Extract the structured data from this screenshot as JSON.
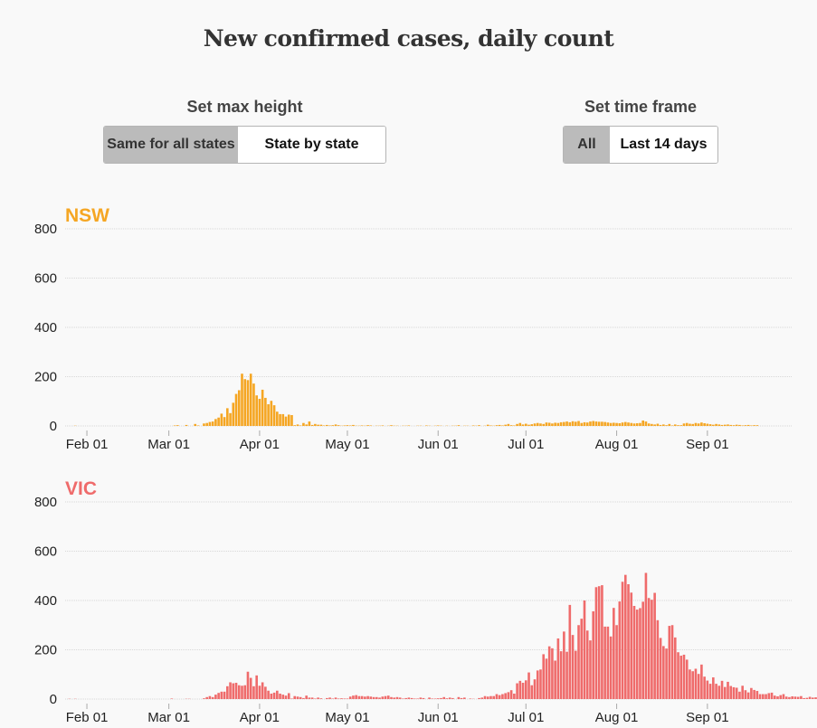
{
  "title": "New confirmed cases, daily count",
  "controls": {
    "max_height": {
      "label": "Set max height",
      "options": [
        "Same for all states",
        "State by state"
      ],
      "selected": "Same for all states"
    },
    "time_frame": {
      "label": "Set time frame",
      "options": [
        "All",
        "Last 14 days"
      ],
      "selected": "All"
    }
  },
  "chart_data": [
    {
      "type": "bar",
      "title": "NSW",
      "color": "#f5a623",
      "x_start": "Jan 25",
      "x_ticks": [
        "Feb 01",
        "Mar 01",
        "Apr 01",
        "May 01",
        "Jun 01",
        "Jul 01",
        "Aug 01",
        "Sep 01"
      ],
      "x_tick_day_index": [
        7,
        35,
        66,
        96,
        127,
        157,
        188,
        219
      ],
      "y_ticks": [
        0,
        200,
        400,
        600,
        800
      ],
      "ylim": [
        0,
        800
      ],
      "grid": true,
      "values": [
        0,
        0,
        0,
        1,
        0,
        0,
        0,
        0,
        0,
        0,
        0,
        0,
        0,
        0,
        0,
        0,
        0,
        0,
        0,
        0,
        0,
        0,
        0,
        0,
        0,
        0,
        0,
        0,
        0,
        0,
        0,
        0,
        0,
        0,
        0,
        0,
        0,
        2,
        3,
        0,
        0,
        4,
        0,
        0,
        8,
        2,
        0,
        10,
        12,
        16,
        18,
        28,
        34,
        50,
        36,
        72,
        52,
        94,
        130,
        145,
        212,
        190,
        186,
        212,
        172,
        124,
        110,
        147,
        114,
        88,
        102,
        84,
        58,
        48,
        48,
        38,
        46,
        44,
        3,
        6,
        2,
        12,
        6,
        18,
        4,
        8,
        5,
        5,
        2,
        4,
        2,
        3,
        6,
        3,
        1,
        2,
        3,
        2,
        4,
        1,
        1,
        2,
        1,
        3,
        2,
        0,
        1,
        1,
        2,
        0,
        1,
        3,
        1,
        1,
        0,
        1,
        1,
        2,
        0,
        0,
        1,
        1,
        0,
        2,
        1,
        0,
        1,
        2,
        1,
        0,
        1,
        0,
        1,
        1,
        3,
        0,
        1,
        1,
        0,
        2,
        1,
        3,
        0,
        1,
        5,
        2,
        1,
        3,
        4,
        2,
        5,
        8,
        3,
        2,
        8,
        12,
        6,
        9,
        5,
        7,
        10,
        12,
        10,
        8,
        14,
        13,
        10,
        13,
        12,
        15,
        16,
        18,
        15,
        19,
        17,
        20,
        12,
        15,
        14,
        18,
        20,
        18,
        17,
        17,
        16,
        14,
        12,
        13,
        12,
        11,
        14,
        16,
        14,
        12,
        10,
        11,
        12,
        22,
        18,
        10,
        8,
        6,
        9,
        4,
        6,
        3,
        8,
        2,
        6,
        3,
        3,
        10,
        12,
        9,
        8,
        12,
        10,
        14,
        11,
        9,
        7,
        5,
        8,
        6,
        4,
        5,
        6,
        4,
        3,
        5,
        4,
        2,
        3,
        4,
        2,
        3,
        3
      ]
    },
    {
      "type": "bar",
      "title": "VIC",
      "color": "#ef6b6b",
      "x_start": "Jan 25",
      "x_ticks": [
        "Feb 01",
        "Mar 01",
        "Apr 01",
        "May 01",
        "Jun 01",
        "Jul 01",
        "Aug 01",
        "Sep 01"
      ],
      "x_tick_day_index": [
        7,
        35,
        66,
        96,
        127,
        157,
        188,
        219
      ],
      "y_ticks": [
        0,
        200,
        400,
        600,
        800
      ],
      "ylim": [
        0,
        800
      ],
      "grid": true,
      "values": [
        0,
        1,
        0,
        1,
        0,
        0,
        0,
        0,
        0,
        0,
        0,
        0,
        0,
        0,
        0,
        0,
        0,
        0,
        0,
        0,
        0,
        0,
        0,
        0,
        0,
        0,
        0,
        0,
        0,
        0,
        0,
        0,
        0,
        0,
        0,
        0,
        2,
        0,
        0,
        0,
        0,
        1,
        1,
        0,
        0,
        0,
        0,
        3,
        8,
        12,
        8,
        18,
        25,
        30,
        30,
        52,
        68,
        64,
        66,
        56,
        54,
        56,
        111,
        86,
        52,
        96,
        54,
        68,
        50,
        34,
        22,
        26,
        34,
        22,
        18,
        14,
        24,
        2,
        12,
        10,
        8,
        4,
        14,
        6,
        6,
        2,
        6,
        3,
        0,
        4,
        6,
        2,
        6,
        2,
        3,
        2,
        2,
        10,
        14,
        16,
        12,
        12,
        10,
        12,
        10,
        8,
        8,
        6,
        10,
        12,
        14,
        8,
        6,
        8,
        6,
        2,
        4,
        6,
        4,
        2,
        2,
        6,
        4,
        0,
        6,
        2,
        2,
        3,
        4,
        8,
        3,
        6,
        4,
        0,
        8,
        4,
        6,
        0,
        2,
        1,
        0,
        4,
        6,
        12,
        10,
        12,
        12,
        20,
        16,
        20,
        24,
        28,
        36,
        22,
        64,
        74,
        66,
        76,
        108,
        56,
        80,
        116,
        120,
        182,
        164,
        214,
        206,
        156,
        246,
        194,
        274,
        192,
        382,
        260,
        196,
        300,
        326,
        400,
        278,
        238,
        356,
        454,
        458,
        462,
        294,
        294,
        254,
        370,
        300,
        396,
        476,
        504,
        466,
        432,
        378,
        363,
        369,
        395,
        512,
        410,
        403,
        431,
        320,
        248,
        215,
        205,
        297,
        300,
        250,
        190,
        176,
        180,
        160,
        120,
        113,
        123,
        102,
        140,
        91,
        75,
        62,
        88,
        62,
        54,
        74,
        49,
        70,
        53,
        48,
        46,
        30,
        54,
        36,
        27,
        45,
        37,
        33,
        20,
        20,
        20,
        24,
        26,
        14,
        11,
        16,
        20,
        10,
        8,
        11,
        10,
        9,
        12,
        4,
        5,
        9,
        6,
        7
      ]
    }
  ]
}
